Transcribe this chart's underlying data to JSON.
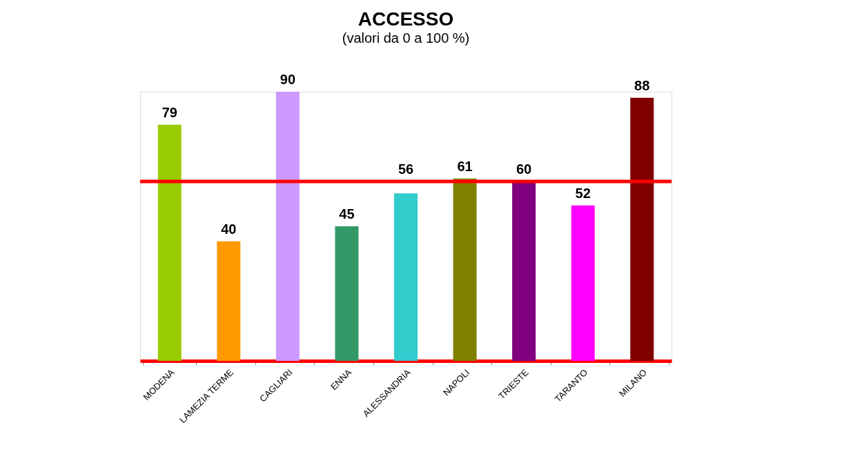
{
  "chart_data": {
    "type": "bar",
    "title": "ACCESSO",
    "subtitle": "(valori da 0 a 100 %)",
    "categories": [
      "MODENA",
      "LAMEZIA TERME",
      "CAGLIARI",
      "ENNA",
      "ALESSANDRIA",
      "NAPOLI",
      "TRIESTE",
      "TARANTO",
      "MILANO"
    ],
    "values": [
      79,
      40,
      90,
      45,
      56,
      61,
      60,
      52,
      88
    ],
    "colors": [
      "#99cc00",
      "#ff9900",
      "#cc99ff",
      "#339966",
      "#33cccc",
      "#808000",
      "#800080",
      "#ff00ff",
      "#800000"
    ],
    "data_labels": true,
    "grid": false,
    "tick_labels": "x",
    "ref_lines": [
      {
        "axis": "y",
        "value": 60,
        "color": "#ff0000"
      }
    ]
  }
}
